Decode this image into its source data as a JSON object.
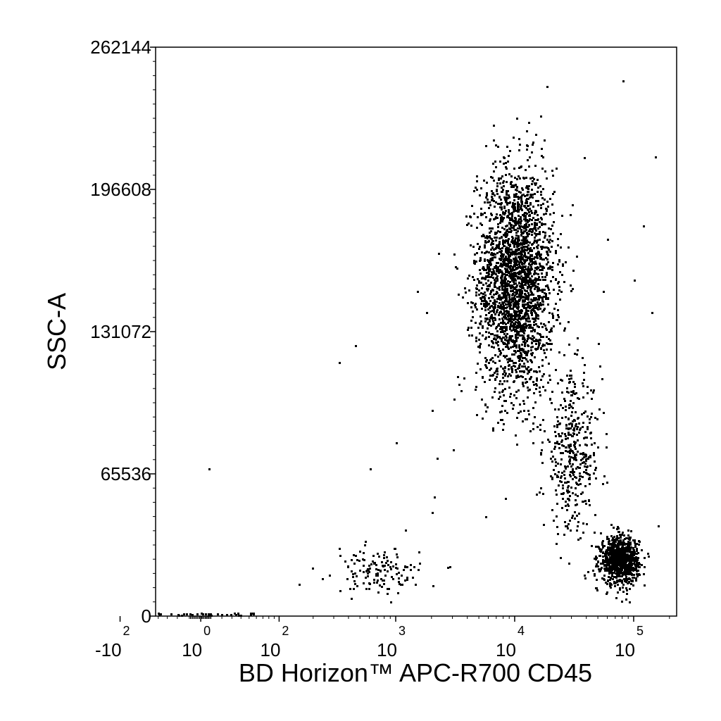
{
  "chart_data": {
    "type": "scatter",
    "title": "",
    "xlabel": "BD Horizon™ APC-R700 CD45",
    "ylabel": "SSC-A",
    "x_scale": "biexponential",
    "xlim": [
      -300,
      400000
    ],
    "ylim": [
      0,
      262144
    ],
    "x_ticks": [
      {
        "value": -100,
        "base": "-10",
        "exp": "2"
      },
      {
        "value": 1,
        "base": "10",
        "exp": "0"
      },
      {
        "value": 100,
        "base": "10",
        "exp": "2"
      },
      {
        "value": 1000,
        "base": "10",
        "exp": "3"
      },
      {
        "value": 10000,
        "base": "10",
        "exp": "4"
      },
      {
        "value": 100000,
        "base": "10",
        "exp": "5"
      }
    ],
    "y_ticks": [
      "0",
      "65536",
      "131072",
      "196608",
      "262144"
    ],
    "y_tick_values": [
      0,
      65536,
      131072,
      196608,
      262144
    ],
    "grid": false,
    "populations": [
      {
        "name": "",
        "x_center": 10000,
        "y_center": 155000,
        "x_spread_decades": 0.16,
        "y_spread": 26000,
        "count": 2600
      },
      {
        "name": "",
        "x_center": 30000,
        "y_center": 75000,
        "x_spread_decades": 0.12,
        "y_spread": 18000,
        "count": 420
      },
      {
        "name": "",
        "x_center": 75000,
        "y_center": 26000,
        "x_spread_decades": 0.08,
        "y_spread": 5500,
        "count": 900
      },
      {
        "name": "",
        "x_center": 700,
        "y_center": 21000,
        "x_spread_decades": 0.18,
        "y_spread": 5000,
        "count": 140
      }
    ],
    "points": [
      {
        "x": 600,
        "y": 68000
      },
      {
        "x": 1000,
        "y": 80000
      },
      {
        "x": 1800,
        "y": 140000
      },
      {
        "x": 1500,
        "y": 150000
      },
      {
        "x": 450,
        "y": 125000
      },
      {
        "x": 330,
        "y": 117000
      },
      {
        "x": 2000,
        "y": 95000
      },
      {
        "x": 3500,
        "y": 104000
      },
      {
        "x": 3000,
        "y": 77000
      },
      {
        "x": 2200,
        "y": 73000
      },
      {
        "x": 1200,
        "y": 40000
      },
      {
        "x": 2100,
        "y": 55000
      },
      {
        "x": 2000,
        "y": 48000
      },
      {
        "x": 2800,
        "y": 23000
      },
      {
        "x": 150,
        "y": 15000
      },
      {
        "x": 8,
        "y": 68000
      },
      {
        "x": 150000,
        "y": 212000
      },
      {
        "x": 140000,
        "y": 140000
      },
      {
        "x": 120000,
        "y": 180000
      },
      {
        "x": 55000,
        "y": 150000
      },
      {
        "x": 160000,
        "y": 42000
      },
      {
        "x": 80000,
        "y": 247000
      },
      {
        "x": 60000,
        "y": 174000
      },
      {
        "x": 100000,
        "y": 155000
      }
    ]
  }
}
